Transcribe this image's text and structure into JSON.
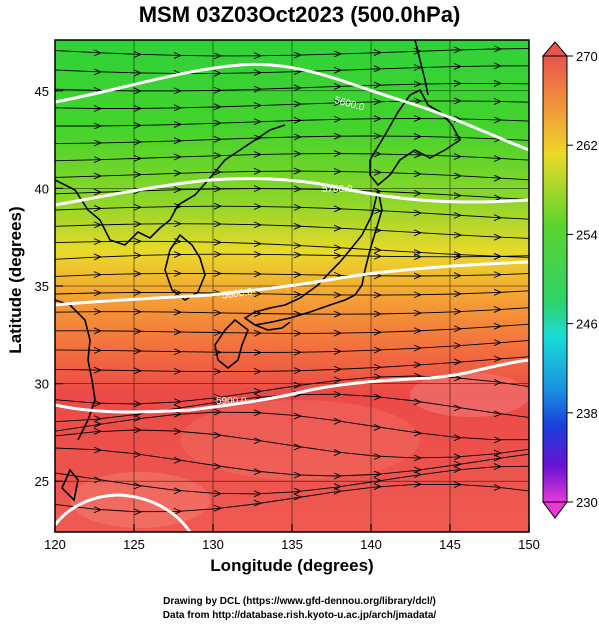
{
  "title": "MSM 03Z03Oct2023 (500.0hPa)",
  "map": {
    "xlabel": "Longitude (degrees)",
    "ylabel": "Latitude  (degrees)",
    "lon_ticks": [
      120,
      125,
      130,
      135,
      140,
      145,
      150
    ],
    "lat_ticks": [
      25,
      30,
      35,
      40,
      45
    ],
    "lon_range": [
      120,
      150
    ],
    "lat_range": [
      22.4,
      47.6
    ],
    "grid": true,
    "shading": "temperature",
    "vectors": "wind streamlines"
  },
  "colorbar": {
    "labels": [
      "270",
      "262",
      "254",
      "246",
      "238",
      "230"
    ],
    "min": 230,
    "max": 270,
    "colors": {
      "max": "#e8534d",
      "high": "#f19a3a",
      "upper": "#ecd928",
      "mid": "#3fcf2f",
      "cyan": "#19dcd8",
      "blue": "#1a3fdc",
      "low": "#8a0fd2",
      "min": "#e63ad8"
    }
  },
  "contours": [
    {
      "label": "5600.0"
    },
    {
      "label": "5700.0"
    },
    {
      "label": "5800.0"
    },
    {
      "label": "5900.0"
    }
  ],
  "credits": {
    "line1": "Drawing by DCL (https://www.gfd-dennou.org/library/dcl/)",
    "line2": "Data from http://database.rish.kyoto-u.ac.jp/arch/jmadata/"
  }
}
